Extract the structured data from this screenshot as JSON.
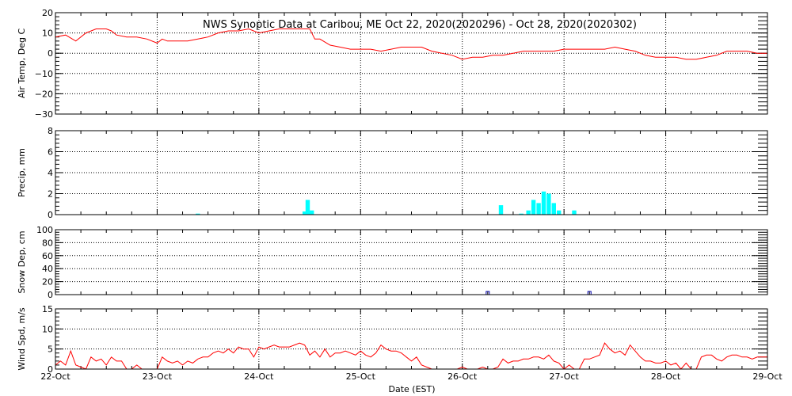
{
  "title": "NWS Synoptic Data at Caribou, ME   Oct 22, 2020(2020296) - Oct 28, 2020(2020302)",
  "xlabel": "Date (EST)",
  "colors": {
    "temp_line": "#ff0000",
    "precip_bar": "#00ffff",
    "snow_marker": "#0000aa",
    "wind_line": "#ff0000",
    "grid": "#000000"
  },
  "chart_data": [
    {
      "type": "line",
      "panel": "air-temp",
      "ylabel": "Air Temp, Deg C",
      "ylim": [
        -30,
        20
      ],
      "yticks": [
        "20",
        "10",
        "0",
        "−10",
        "−20",
        "−30"
      ],
      "xlim": [
        0,
        7
      ],
      "x_tick_labels": [
        "22-Oct",
        "23-Oct",
        "24-Oct",
        "25-Oct",
        "26-Oct",
        "27-Oct",
        "28-Oct",
        "29-Oct"
      ],
      "grid": true,
      "series": [
        {
          "x": [
            0,
            0.1,
            0.2,
            0.3,
            0.4,
            0.5,
            0.55,
            0.6,
            0.7,
            0.8,
            0.9,
            1.0,
            1.05,
            1.1,
            1.2,
            1.3,
            1.4,
            1.5,
            1.6,
            1.7,
            1.8,
            1.9,
            2.0,
            2.1,
            2.2,
            2.3,
            2.4,
            2.5,
            2.55,
            2.6,
            2.7,
            2.8,
            2.9,
            3.0,
            3.1,
            3.2,
            3.3,
            3.4,
            3.5,
            3.6,
            3.7,
            3.8,
            3.9,
            4.0,
            4.1,
            4.2,
            4.3,
            4.4,
            4.5,
            4.6,
            4.7,
            4.8,
            4.9,
            5.0,
            5.1,
            5.2,
            5.3,
            5.4,
            5.5,
            5.6,
            5.7,
            5.8,
            5.9,
            6.0,
            6.1,
            6.2,
            6.3,
            6.4,
            6.5,
            6.6,
            6.7,
            6.8,
            6.9,
            7.0
          ],
          "y": [
            8,
            9,
            6,
            10,
            12,
            12,
            11,
            9,
            8,
            8,
            7,
            5,
            7,
            6,
            6,
            6,
            7,
            8,
            10,
            11,
            11,
            12,
            10,
            11,
            12,
            12,
            12,
            12,
            7,
            7,
            4,
            3,
            2,
            2,
            2,
            1,
            2,
            3,
            3,
            3,
            1,
            0,
            -1,
            -3,
            -2,
            -2,
            -1,
            -1,
            0,
            1,
            1,
            1,
            1,
            2,
            2,
            2,
            2,
            2,
            3,
            2,
            1,
            -1,
            -2,
            -2,
            -2,
            -3,
            -3,
            -2,
            -1,
            1,
            1,
            1,
            0,
            0
          ]
        }
      ]
    },
    {
      "type": "bar",
      "panel": "precip",
      "ylabel": "Precip, mm",
      "ylim": [
        0,
        8
      ],
      "yticks": [
        "8",
        "6",
        "4",
        "2",
        "0"
      ],
      "xlim": [
        0,
        7
      ],
      "grid": true,
      "bars": [
        {
          "x": 1.4,
          "value": 0.1
        },
        {
          "x": 2.45,
          "value": 0.3
        },
        {
          "x": 2.48,
          "value": 1.4
        },
        {
          "x": 2.52,
          "value": 0.4
        },
        {
          "x": 4.38,
          "value": 0.9
        },
        {
          "x": 4.58,
          "value": 0.1
        },
        {
          "x": 4.65,
          "value": 0.4
        },
        {
          "x": 4.7,
          "value": 1.4
        },
        {
          "x": 4.75,
          "value": 1.1
        },
        {
          "x": 4.8,
          "value": 2.2
        },
        {
          "x": 4.85,
          "value": 2.0
        },
        {
          "x": 4.9,
          "value": 1.1
        },
        {
          "x": 4.95,
          "value": 0.4
        },
        {
          "x": 5.1,
          "value": 0.4
        }
      ]
    },
    {
      "type": "scatter",
      "panel": "snow-depth",
      "ylabel": "Snow Dep, cm",
      "ylim": [
        0,
        100
      ],
      "yticks": [
        "100",
        "80",
        "60",
        "40",
        "20",
        "0"
      ],
      "xlim": [
        0,
        7
      ],
      "grid": true,
      "points": [
        {
          "x": 4.25,
          "y": 0
        },
        {
          "x": 5.25,
          "y": 0
        }
      ]
    },
    {
      "type": "line",
      "panel": "wind-speed",
      "ylabel": "Wind Spd, m/s",
      "ylim": [
        0,
        15
      ],
      "yticks": [
        "15",
        "10",
        "5",
        "0"
      ],
      "xlim": [
        0,
        7
      ],
      "grid": true,
      "series": [
        {
          "x": [
            0,
            0.05,
            0.1,
            0.15,
            0.2,
            0.25,
            0.3,
            0.35,
            0.4,
            0.45,
            0.5,
            0.55,
            0.6,
            0.65,
            0.7,
            0.75,
            0.8,
            0.85,
            0.9,
            0.95,
            1.0,
            1.05,
            1.1,
            1.15,
            1.2,
            1.25,
            1.3,
            1.35,
            1.4,
            1.45,
            1.5,
            1.55,
            1.6,
            1.65,
            1.7,
            1.75,
            1.8,
            1.85,
            1.9,
            1.95,
            2.0,
            2.05,
            2.1,
            2.15,
            2.2,
            2.25,
            2.3,
            2.35,
            2.4,
            2.45,
            2.5,
            2.55,
            2.6,
            2.65,
            2.7,
            2.75,
            2.8,
            2.85,
            2.9,
            2.95,
            3.0,
            3.05,
            3.1,
            3.15,
            3.2,
            3.25,
            3.3,
            3.35,
            3.4,
            3.45,
            3.5,
            3.55,
            3.6,
            3.65,
            3.7,
            3.75,
            3.8,
            3.85,
            3.9,
            3.95,
            4.0,
            4.05,
            4.1,
            4.15,
            4.2,
            4.25,
            4.3,
            4.35,
            4.4,
            4.45,
            4.5,
            4.55,
            4.6,
            4.65,
            4.7,
            4.75,
            4.8,
            4.85,
            4.9,
            4.95,
            5.0,
            5.05,
            5.1,
            5.15,
            5.2,
            5.25,
            5.3,
            5.35,
            5.4,
            5.45,
            5.5,
            5.55,
            5.6,
            5.65,
            5.7,
            5.75,
            5.8,
            5.85,
            5.9,
            5.95,
            6.0,
            6.05,
            6.1,
            6.15,
            6.2,
            6.25,
            6.3,
            6.35,
            6.4,
            6.45,
            6.5,
            6.55,
            6.6,
            6.65,
            6.7,
            6.75,
            6.8,
            6.85,
            6.9,
            6.95,
            7.0
          ],
          "y": [
            1,
            2,
            1,
            4.5,
            1,
            0.5,
            0,
            3,
            2,
            2.5,
            1,
            3,
            2,
            2,
            0,
            0,
            1,
            0,
            0,
            0,
            0,
            3,
            2,
            1.5,
            2,
            1,
            2,
            1.5,
            2.5,
            3,
            3,
            4,
            4.5,
            4,
            5,
            4,
            5.5,
            5,
            5,
            3,
            5.5,
            5,
            5.5,
            6,
            5.5,
            5.5,
            5.5,
            6,
            6.5,
            6,
            3.5,
            4.5,
            3,
            5,
            3,
            4,
            4,
            4.5,
            4,
            3.5,
            4.5,
            3.5,
            3,
            4,
            6,
            5,
            4.5,
            4.5,
            4,
            3,
            2,
            3,
            1,
            0.5,
            0,
            0,
            0,
            0,
            0,
            0,
            0.5,
            0,
            0,
            0,
            0.5,
            0,
            0,
            0.5,
            2.5,
            1.5,
            2,
            2,
            2.5,
            2.5,
            3,
            3,
            2.5,
            3.5,
            2,
            1.5,
            0,
            1,
            0,
            0,
            2.5,
            2.5,
            3,
            3.5,
            6.5,
            5,
            4,
            4.5,
            3.5,
            6,
            4.5,
            3,
            2,
            2,
            1.5,
            1.5,
            2,
            1,
            1.5,
            0,
            1.5,
            0,
            0,
            3,
            3.5,
            3.5,
            2.5,
            2,
            3,
            3.5,
            3.5,
            3,
            3,
            2.5,
            3,
            3,
            3
          ]
        }
      ]
    }
  ]
}
